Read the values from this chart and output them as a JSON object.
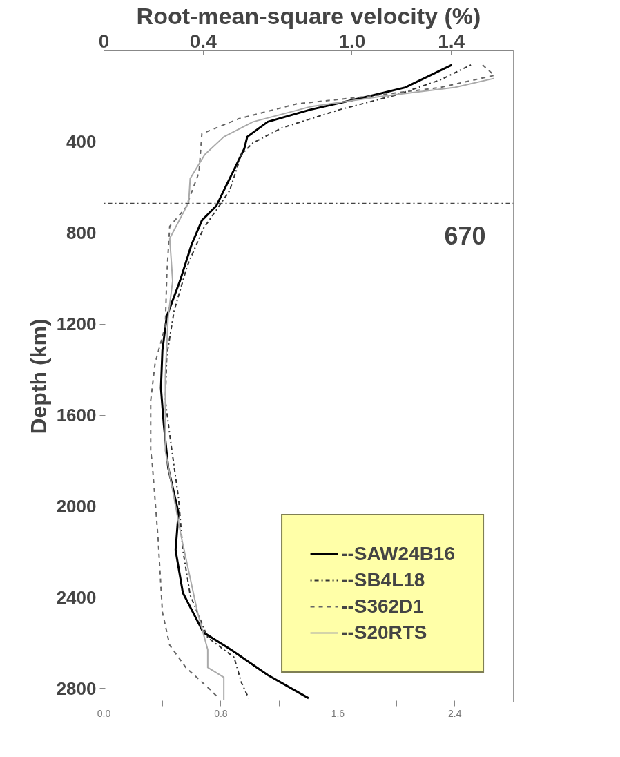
{
  "chart_data": {
    "type": "line",
    "x2label": "Root-mean-square velocity (%)",
    "ylabel": "Depth (km)",
    "xlim": [
      0,
      2.8
    ],
    "ylim": [
      2860,
      0
    ],
    "xticks": [
      {
        "value": 0,
        "label": "0.0"
      },
      {
        "value": 0.4,
        "label": null
      },
      {
        "value": 0.8,
        "label": "0.8"
      },
      {
        "value": 1.2,
        "label": null
      },
      {
        "value": 1.6,
        "label": "1.6"
      },
      {
        "value": 2.0,
        "label": null
      },
      {
        "value": 2.4,
        "label": "2.4"
      }
    ],
    "x2lim": [
      0,
      1.65
    ],
    "x2ticks": [
      0,
      0.4,
      {
        "value": 1.0,
        "label": "1.0"
      },
      1.4
    ],
    "yticks": [
      400,
      800,
      1200,
      1600,
      2000,
      2400,
      2800
    ],
    "grid": false,
    "legend": "bottom right",
    "ref_lines": [
      {
        "axis": "y",
        "value": 670,
        "label": "670",
        "color": "#444444",
        "line_style": "dotted"
      }
    ],
    "series": [
      {
        "name": "--SAW24B16",
        "color": "#000000",
        "line_style": "solid",
        "x": [
          2.38,
          2.06,
          1.81,
          1.41,
          1.12,
          0.98,
          0.96,
          0.9,
          0.82,
          0.77,
          0.67,
          0.6,
          0.52,
          0.43,
          0.4,
          0.39,
          0.41,
          0.44,
          0.51,
          0.49,
          0.54,
          0.68,
          0.87,
          1.12,
          1.4
        ],
        "values": [
          62,
          161,
          200,
          259,
          312,
          378,
          430,
          509,
          614,
          680,
          745,
          850,
          1011,
          1165,
          1316,
          1481,
          1645,
          1832,
          2029,
          2193,
          2380,
          2554,
          2630,
          2741,
          2843
        ]
      },
      {
        "name": "--SB4L18",
        "color": "#333333",
        "line_style": "dotted",
        "x": [
          2.51,
          2.3,
          2.0,
          1.61,
          1.22,
          1.02,
          0.94,
          0.86,
          0.79,
          0.68,
          0.57,
          0.48,
          0.43,
          0.42,
          0.46,
          0.51,
          0.54,
          0.59,
          0.71,
          0.89,
          0.94,
          0.99
        ],
        "values": [
          62,
          128,
          194,
          259,
          338,
          404,
          456,
          614,
          680,
          781,
          945,
          1142,
          1339,
          1536,
          1733,
          1963,
          2193,
          2390,
          2577,
          2663,
          2774,
          2843
        ]
      },
      {
        "name": "--S362D1",
        "color": "#666666",
        "line_style": "dashed",
        "x": [
          2.59,
          2.67,
          2.3,
          1.81,
          1.32,
          0.92,
          0.67,
          0.65,
          0.56,
          0.45,
          0.43,
          0.42,
          0.35,
          0.32,
          0.32,
          0.33,
          0.37,
          0.4,
          0.45,
          0.56,
          0.73,
          0.78
        ],
        "values": [
          62,
          108,
          161,
          200,
          233,
          299,
          364,
          535,
          689,
          771,
          988,
          1208,
          1372,
          1536,
          1756,
          1809,
          2137,
          2465,
          2610,
          2708,
          2807,
          2840
        ]
      },
      {
        "name": "--S20RTS",
        "color": "#aaaaaa",
        "line_style": "solid",
        "x": [
          2.67,
          2.4,
          1.9,
          1.41,
          1.02,
          0.82,
          0.69,
          0.59,
          0.58,
          0.45,
          0.47,
          0.44,
          0.42,
          0.42,
          0.42,
          0.53,
          0.64,
          0.71,
          0.71,
          0.82,
          0.82
        ],
        "values": [
          121,
          161,
          200,
          246,
          312,
          378,
          456,
          561,
          666,
          824,
          1011,
          1165,
          1428,
          1645,
          1756,
          2137,
          2465,
          2630,
          2708,
          2751,
          2850
        ]
      }
    ]
  }
}
